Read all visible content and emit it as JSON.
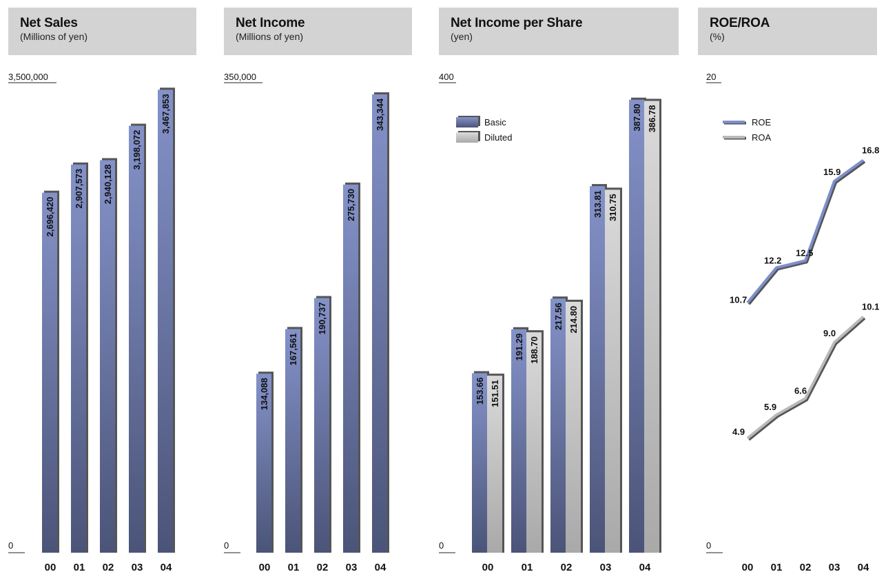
{
  "chart_data": [
    {
      "id": "net_sales",
      "type": "bar",
      "title": "Net Sales",
      "subtitle": "(Millions of yen)",
      "categories": [
        "00",
        "01",
        "02",
        "03",
        "04"
      ],
      "series": [
        {
          "values": [
            2696420,
            2907573,
            2940128,
            3198072,
            3467853
          ],
          "labels": [
            "2,696,420",
            "2,907,573",
            "2,940,128",
            "3,198,072",
            "3,467,853"
          ]
        }
      ],
      "ylim": [
        0,
        3500000
      ],
      "ytick_labels": [
        "0",
        "3,500,000"
      ]
    },
    {
      "id": "net_income",
      "type": "bar",
      "title": "Net Income",
      "subtitle": "(Millions of yen)",
      "categories": [
        "00",
        "01",
        "02",
        "03",
        "04"
      ],
      "series": [
        {
          "values": [
            134088,
            167561,
            190737,
            275730,
            343344
          ],
          "labels": [
            "134,088",
            "167,561",
            "190,737",
            "275,730",
            "343,344"
          ]
        }
      ],
      "ylim": [
        0,
        350000
      ],
      "ytick_labels": [
        "0",
        "350,000"
      ]
    },
    {
      "id": "net_income_per_share",
      "type": "bar",
      "title": "Net Income per Share",
      "subtitle": "(yen)",
      "categories": [
        "00",
        "01",
        "02",
        "03",
        "04"
      ],
      "series": [
        {
          "name": "Basic",
          "values": [
            153.66,
            191.29,
            217.56,
            313.81,
            387.8
          ],
          "labels": [
            "153.66",
            "191.29",
            "217.56",
            "313.81",
            "387.80"
          ]
        },
        {
          "name": "Diluted",
          "values": [
            151.51,
            188.7,
            214.8,
            310.75,
            386.78
          ],
          "labels": [
            "151.51",
            "188.70",
            "214.80",
            "310.75",
            "386.78"
          ]
        }
      ],
      "ylim": [
        0,
        400
      ],
      "ytick_labels": [
        "0",
        "400"
      ],
      "legend": "top-left"
    },
    {
      "id": "roe_roa",
      "type": "line",
      "title": "ROE/ROA",
      "subtitle": "(%)",
      "categories": [
        "00",
        "01",
        "02",
        "03",
        "04"
      ],
      "series": [
        {
          "name": "ROE",
          "values": [
            10.7,
            12.2,
            12.5,
            15.9,
            16.8
          ],
          "labels": [
            "10.7",
            "12.2",
            "12.5",
            "15.9",
            "16.8"
          ]
        },
        {
          "name": "ROA",
          "values": [
            4.9,
            5.9,
            6.6,
            9.0,
            10.1
          ],
          "labels": [
            "4.9",
            "5.9",
            "6.6",
            "9.0",
            "10.1"
          ]
        }
      ],
      "ylim": [
        0,
        20
      ],
      "ytick_labels": [
        "0",
        "20"
      ],
      "legend": "top-left"
    }
  ],
  "colors": {
    "bar_blue_top": "#8492c9",
    "bar_blue_bottom": "#4b5478",
    "bar_gray_top": "#dadada",
    "bar_gray_bottom": "#a9a9a9",
    "bar_shadow": "#555555",
    "roe_line": "#7d8fcc",
    "roa_line": "#b9b9b9",
    "header_bg": "#d3d3d3"
  }
}
